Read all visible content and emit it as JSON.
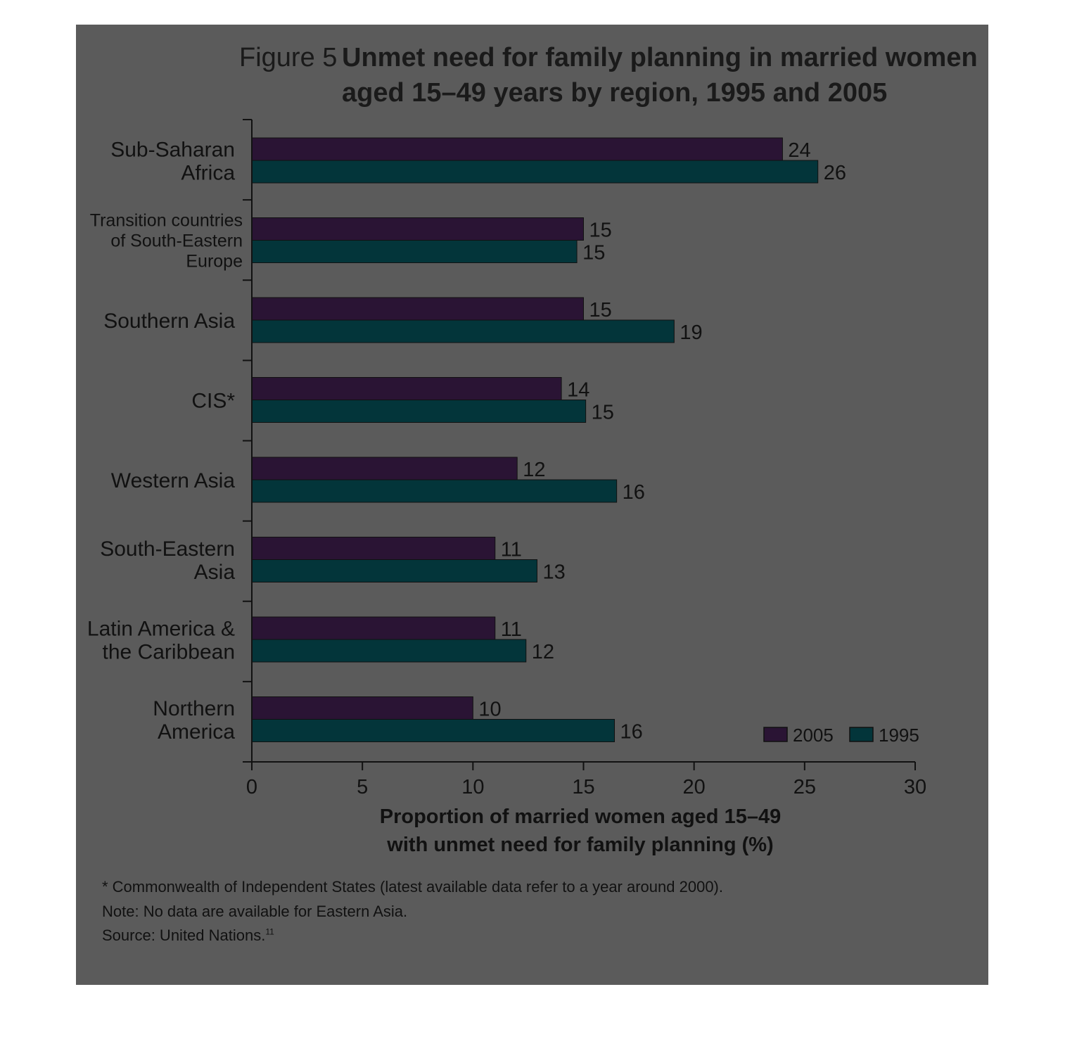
{
  "chart_data": {
    "type": "bar",
    "orientation": "horizontal",
    "title_prefix": "Figure 5",
    "title_lines": [
      "Unmet need for family planning in married women",
      "aged 15–49 years by region, 1995 and 2005"
    ],
    "categories": [
      [
        "Sub-Saharan",
        "Africa"
      ],
      [
        "Transition countries",
        "of South-Eastern",
        "Europe"
      ],
      [
        "Southern Asia"
      ],
      [
        "CIS*"
      ],
      [
        "Western Asia"
      ],
      [
        "South-Eastern",
        "Asia"
      ],
      [
        "Latin America &",
        "the Caribbean"
      ],
      [
        "Northern",
        "America"
      ]
    ],
    "series": [
      {
        "name": "2005",
        "color": "#2a1434",
        "values": [
          24,
          15,
          15,
          14,
          12,
          11,
          11,
          10
        ],
        "labels": [
          "24",
          "15",
          "15",
          "14",
          "12",
          "11",
          "11",
          "10"
        ]
      },
      {
        "name": "1995",
        "color": "#03353a",
        "values": [
          25.6,
          14.7,
          19.1,
          15.1,
          16.5,
          12.9,
          12.4,
          16.4
        ],
        "labels": [
          "26",
          "15",
          "19",
          "15",
          "16",
          "13",
          "12",
          "16"
        ]
      }
    ],
    "xlim": [
      0,
      30
    ],
    "xticks": [
      "0",
      "5",
      "10",
      "15",
      "20",
      "25",
      "30"
    ],
    "xlabel_lines": [
      "Proportion of married women aged 15–49",
      "with unmet need for family planning (%)"
    ],
    "legend_placement": "bottom-right"
  },
  "notes": {
    "footnote": "* Commonwealth of Independent States (latest available data refer to a year around 2000).",
    "note": "Note: No data are available for Eastern Asia.",
    "source": "Source: United Nations.",
    "source_ref": "11"
  }
}
